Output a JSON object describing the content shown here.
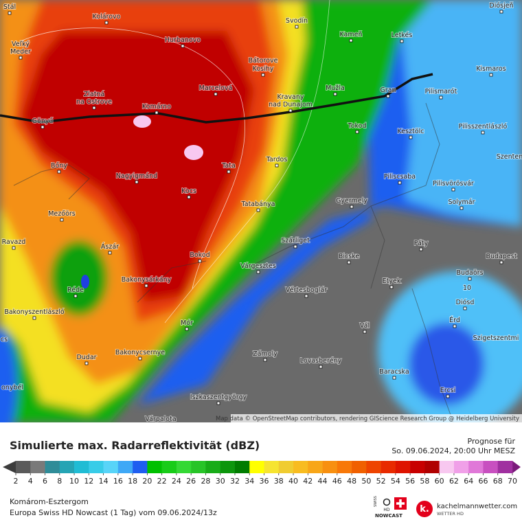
{
  "map": {
    "places": [
      "Stál",
      "Kolárovo",
      "Svodín",
      "Diósjeň",
      "Kameň",
      "Letkés",
      "Veľký",
      "Meder",
      "Hurbanovo",
      "Bátorove",
      "Kosihy",
      "Kismaros",
      "Zlatná",
      "na Ostrove",
      "Marcelová",
      "Mužla",
      "Gran",
      "Pilismarót",
      "Kravany",
      "nad Dunajom",
      "Komárno",
      "Gönyű",
      "Tokod",
      "Kesztölc",
      "Pilisszentlászló",
      "Tardos",
      "Szenten",
      "Bőny",
      "Tata",
      "Nagyigmánd",
      "Piliscsaba",
      "Pilisvörösvár",
      "Kocs",
      "Gyermely",
      "Solymár",
      "Tatabánya",
      "Mezőörs",
      "Szárliget",
      "Páty",
      "Ravazd",
      "Ászár",
      "Bicske",
      "Bokod",
      "Budapest",
      "Várgesztes",
      "Budaörs",
      "Réde",
      "Bakonysárkány",
      "Etyek",
      "Vértesboglár",
      "Diósd",
      "Bakonyszentlászló",
      "Érd",
      "Mór",
      "Vál",
      "Szigetszentmi",
      "Dudar",
      "Bakonycsernye",
      "Zámoly",
      "Lovasberény",
      "Baracska",
      "Ercsi",
      "cs",
      "onybél",
      "Iszkaszentgyörgy",
      "Várpalota"
    ],
    "contour_label": "10",
    "attribution": "Map data © OpenStreetMap contributors, rendering GIScience Research Group @ Heidelberg University"
  },
  "legend": {
    "title": "Simulierte max. Radarreflektivität (dBZ)",
    "forecast_label": "Prognose für",
    "forecast_time": "So. 09.06.2024, 20:00 Uhr MESZ",
    "ticks": [
      2,
      4,
      6,
      8,
      10,
      12,
      14,
      16,
      18,
      20,
      22,
      24,
      26,
      28,
      30,
      32,
      34,
      36,
      38,
      40,
      42,
      44,
      46,
      48,
      50,
      52,
      54,
      56,
      58,
      60,
      62,
      64,
      66,
      68,
      70
    ],
    "colors": [
      "#5a5a5a",
      "#7a7a7a",
      "#2f8c98",
      "#25a4b4",
      "#20bcd4",
      "#38cce8",
      "#58d4f8",
      "#3ea8f6",
      "#1f5ef0",
      "#00c000",
      "#18cc18",
      "#34d834",
      "#28c428",
      "#18ac18",
      "#0c960c",
      "#007c00",
      "#ffff00",
      "#f6e430",
      "#f0cc30",
      "#f8bc20",
      "#f8a618",
      "#f89010",
      "#f87808",
      "#f06000",
      "#ee4400",
      "#e82a00",
      "#de1400",
      "#c80000",
      "#b00000",
      "#f8c8f0",
      "#f0a0e8",
      "#e078d8",
      "#c850c0",
      "#a030a0"
    ]
  },
  "footer": {
    "region": "Komárom-Esztergom",
    "model": "Europa Swiss HD Nowcast (1 Tag) vom 09.06.2024/13z",
    "logo_swiss": "SWISS",
    "logo_hd": "HD",
    "logo_nowcast": "NOWCAST",
    "brand": "kachelmannwetter.com",
    "brand_sub": "WETTER HD"
  }
}
